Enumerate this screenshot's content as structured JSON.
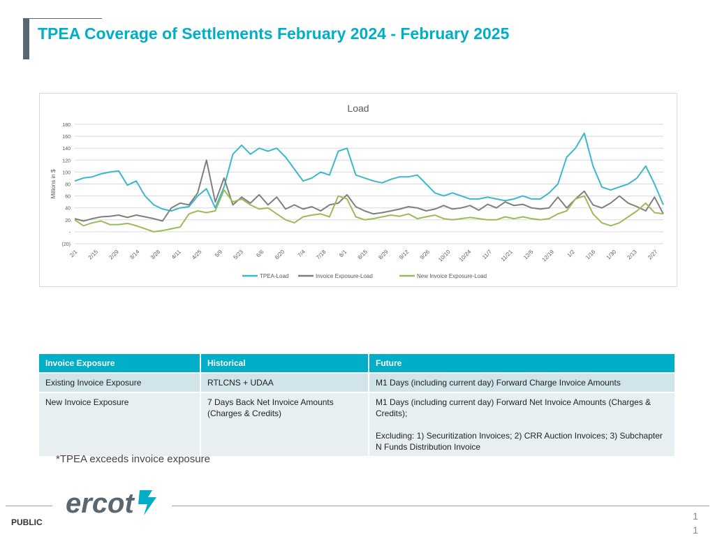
{
  "slide": {
    "title": "TPEA Coverage of Settlements February 2024 - February 2025",
    "note": "*TPEA exceeds invoice exposure",
    "public_label": "PUBLIC",
    "page_number": "11",
    "logo_text": "ercot"
  },
  "table": {
    "headers": [
      "Invoice Exposure",
      "Historical",
      "Future"
    ],
    "rows": [
      {
        "c1": "Existing Invoice Exposure",
        "c2": "RTLCNS + UDAA",
        "c3a": "M1 Days (including current day)  Forward Charge Invoice Amounts",
        "c3b": ""
      },
      {
        "c1": "New Invoice Exposure",
        "c2": "7 Days Back Net Invoice Amounts (Charges & Credits)",
        "c3a": "M1 Days (including current day)  Forward Net Invoice Amounts (Charges & Credits);",
        "c3b": "Excluding: 1) Securitization Invoices; 2) CRR Auction Invoices; 3) Subchapter N Funds Distribution Invoice"
      }
    ]
  },
  "chart_data": {
    "type": "line",
    "title": "Load",
    "xlabel": "",
    "ylabel": "Millions in $",
    "ylim": [
      -20,
      180
    ],
    "yticks": [
      {
        "value": 180,
        "label": "180"
      },
      {
        "value": 160,
        "label": "160"
      },
      {
        "value": 140,
        "label": "140"
      },
      {
        "value": 120,
        "label": "120"
      },
      {
        "value": 100,
        "label": "100"
      },
      {
        "value": 80,
        "label": "80"
      },
      {
        "value": 60,
        "label": "60"
      },
      {
        "value": 40,
        "label": "40"
      },
      {
        "value": 20,
        "label": "20"
      },
      {
        "value": 0,
        "label": "-"
      },
      {
        "value": -20,
        "label": "(20)"
      }
    ],
    "grid": true,
    "legend_position": "bottom",
    "x_tick_labels": [
      "2/1",
      "2/15",
      "2/29",
      "3/14",
      "3/28",
      "4/11",
      "4/25",
      "5/9",
      "5/23",
      "6/6",
      "6/20",
      "7/4",
      "7/18",
      "8/1",
      "8/15",
      "8/29",
      "9/12",
      "9/26",
      "10/10",
      "10/24",
      "11/7",
      "11/21",
      "12/5",
      "12/19",
      "1/2",
      "1/16",
      "1/30",
      "2/13",
      "2/27"
    ],
    "x_note": "values sampled weekly (every half tick interval), 2/1/2024 to 3/3/2025",
    "series": [
      {
        "name": "TPEA-Load",
        "color": "#3bb8cc",
        "values": [
          85,
          90,
          92,
          97,
          100,
          102,
          78,
          85,
          60,
          45,
          38,
          35,
          40,
          42,
          60,
          72,
          40,
          75,
          130,
          145,
          130,
          140,
          135,
          140,
          125,
          105,
          85,
          90,
          100,
          95,
          135,
          140,
          95,
          90,
          85,
          82,
          88,
          92,
          92,
          95,
          80,
          65,
          60,
          65,
          60,
          55,
          55,
          58,
          55,
          52,
          55,
          60,
          55,
          55,
          65,
          80,
          125,
          140,
          165,
          110,
          75,
          70,
          75,
          80,
          90,
          110,
          80,
          45
        ]
      },
      {
        "name": "Invoice Exposure-Load",
        "color": "#7f7f7f",
        "values": [
          22,
          18,
          22,
          25,
          26,
          28,
          24,
          28,
          25,
          22,
          18,
          40,
          48,
          45,
          65,
          120,
          50,
          90,
          45,
          58,
          48,
          62,
          45,
          58,
          38,
          45,
          38,
          42,
          35,
          45,
          48,
          62,
          42,
          35,
          30,
          32,
          35,
          38,
          42,
          40,
          35,
          38,
          44,
          38,
          40,
          44,
          36,
          46,
          40,
          50,
          44,
          46,
          40,
          38,
          40,
          58,
          40,
          55,
          68,
          45,
          40,
          48,
          60,
          48,
          42,
          35,
          58,
          30
        ]
      },
      {
        "name": "New Invoice Exposure-Load",
        "color": "#9bbb59",
        "values": [
          20,
          10,
          15,
          18,
          12,
          12,
          14,
          10,
          5,
          0,
          2,
          5,
          8,
          30,
          35,
          32,
          35,
          70,
          50,
          55,
          45,
          38,
          40,
          30,
          20,
          15,
          25,
          28,
          30,
          25,
          60,
          55,
          25,
          20,
          22,
          25,
          28,
          26,
          30,
          22,
          25,
          28,
          22,
          20,
          22,
          24,
          22,
          20,
          20,
          25,
          22,
          25,
          22,
          20,
          22,
          30,
          35,
          55,
          60,
          30,
          15,
          10,
          15,
          25,
          35,
          48,
          32,
          30
        ]
      }
    ]
  }
}
